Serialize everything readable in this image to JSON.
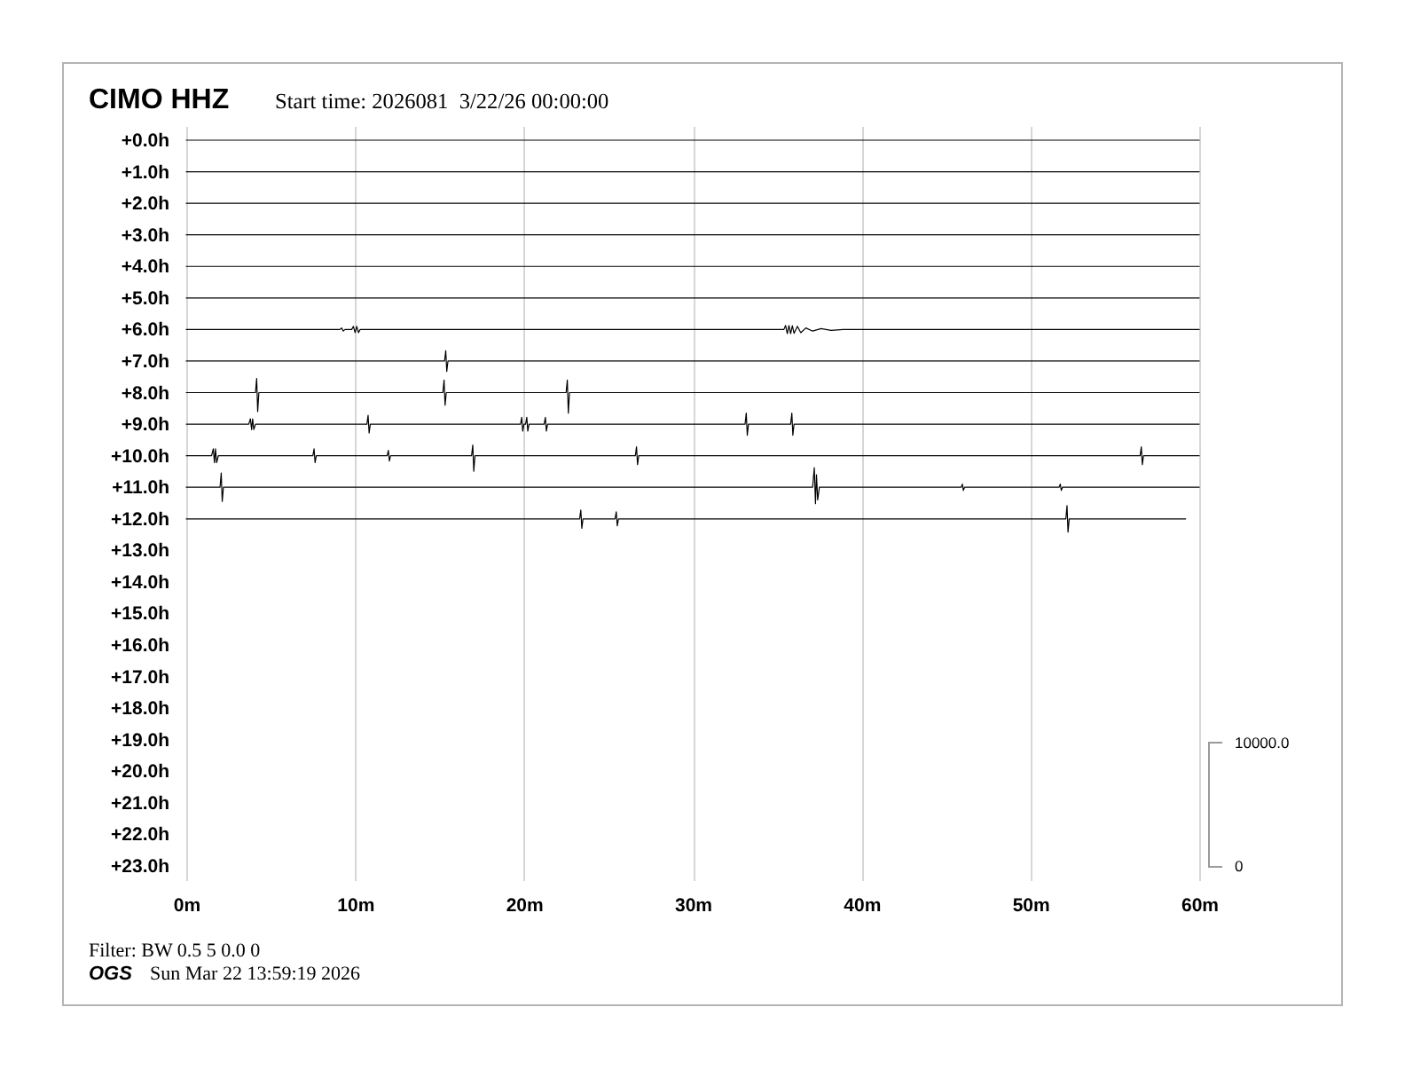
{
  "chart_data": {
    "type": "line",
    "title": "CIMO HHZ",
    "subtitle": "Start time: 2026081  3/22/26 00:00:00",
    "annotations": [
      "Filter: BW 0.5 5 0.0 0",
      "OGS",
      "Sun Mar 22 13:59:19 2026",
      "10000.0",
      "0"
    ],
    "xlim": [
      0,
      60
    ],
    "xticks": [
      {
        "value": 0,
        "label": "0m"
      },
      {
        "value": 10,
        "label": "10m"
      },
      {
        "value": 20,
        "label": "20m"
      },
      {
        "value": 30,
        "label": "30m"
      },
      {
        "value": 40,
        "label": "40m"
      },
      {
        "value": 50,
        "label": "50m"
      },
      {
        "value": 60,
        "label": "60m"
      }
    ],
    "ylim": [
      23.45,
      -0.45
    ],
    "yticks": [
      {
        "value": 0,
        "label": "+0.0h"
      },
      {
        "value": 1,
        "label": "+1.0h"
      },
      {
        "value": 2,
        "label": "+2.0h"
      },
      {
        "value": 3,
        "label": "+3.0h"
      },
      {
        "value": 4,
        "label": "+4.0h"
      },
      {
        "value": 5,
        "label": "+5.0h"
      },
      {
        "value": 6,
        "label": "+6.0h"
      },
      {
        "value": 7,
        "label": "+7.0h"
      },
      {
        "value": 8,
        "label": "+8.0h"
      },
      {
        "value": 9,
        "label": "+9.0h"
      },
      {
        "value": 10,
        "label": "+10.0h"
      },
      {
        "value": 11,
        "label": "+11.0h"
      },
      {
        "value": 12,
        "label": "+12.0h"
      },
      {
        "value": 13,
        "label": "+13.0h"
      },
      {
        "value": 14,
        "label": "+14.0h"
      },
      {
        "value": 15,
        "label": "+15.0h"
      },
      {
        "value": 16,
        "label": "+16.0h"
      },
      {
        "value": 17,
        "label": "+17.0h"
      },
      {
        "value": 18,
        "label": "+18.0h"
      },
      {
        "value": 19,
        "label": "+19.0h"
      },
      {
        "value": 20,
        "label": "+20.0h"
      },
      {
        "value": 21,
        "label": "+21.0h"
      },
      {
        "value": 22,
        "label": "+22.0h"
      },
      {
        "value": 23,
        "label": "+23.0h"
      }
    ],
    "grid": "x",
    "series": [
      {
        "color": "#000000",
        "x": [
          0,
          60
        ],
        "values": [
          0,
          0
        ]
      },
      {
        "color": "#000000",
        "x": [
          0,
          60
        ],
        "values": [
          1,
          1
        ]
      },
      {
        "color": "#000000",
        "x": [
          0,
          60
        ],
        "values": [
          2,
          2
        ]
      },
      {
        "color": "#000000",
        "x": [
          0,
          60
        ],
        "values": [
          3,
          3
        ]
      },
      {
        "color": "#000000",
        "x": [
          0,
          60
        ],
        "values": [
          4,
          4
        ]
      },
      {
        "color": "#000000",
        "x": [
          0,
          60
        ],
        "values": [
          5,
          5
        ]
      },
      {
        "color": "#000000",
        "x": [
          0,
          9.1,
          9.2,
          9.3,
          9.4,
          9.8,
          9.9,
          10.0,
          10.1,
          10.2,
          10.3,
          35.4,
          35.5,
          35.6,
          35.7,
          35.8,
          35.9,
          36.0,
          36.2,
          36.4,
          36.7,
          37.1,
          37.6,
          38.2,
          38.9,
          60
        ],
        "values": [
          6,
          6,
          5.95,
          6.05,
          6,
          6,
          5.9,
          6.1,
          5.9,
          6.1,
          6,
          6,
          5.87,
          6.13,
          5.87,
          6.13,
          5.88,
          6.12,
          5.9,
          6.1,
          5.95,
          6.05,
          5.97,
          6.03,
          6,
          6
        ]
      },
      {
        "color": "#000000",
        "x": [
          0,
          15.3,
          15.37,
          15.43,
          15.5,
          60
        ],
        "values": [
          7,
          7,
          6.67,
          7.33,
          7,
          7
        ]
      },
      {
        "color": "#000000",
        "x": [
          0,
          4.1,
          4.17,
          4.23,
          4.3,
          15.2,
          15.27,
          15.33,
          15.4,
          22.5,
          22.57,
          22.63,
          22.7,
          60
        ],
        "values": [
          8,
          8,
          7.55,
          8.6,
          8,
          8,
          7.6,
          8.4,
          8,
          8,
          7.6,
          8.65,
          8,
          8
        ]
      },
      {
        "color": "#000000",
        "x": [
          0,
          3.7,
          3.8,
          3.87,
          3.93,
          4.0,
          4.1,
          10.7,
          10.77,
          10.83,
          10.9,
          19.8,
          19.87,
          19.93,
          20.0,
          20.1,
          20.17,
          20.23,
          20.3,
          21.2,
          21.27,
          21.33,
          21.4,
          33.1,
          33.17,
          33.23,
          33.3,
          35.8,
          35.87,
          35.93,
          36.0,
          60
        ],
        "values": [
          9,
          9,
          8.83,
          9.17,
          8.83,
          9.17,
          9,
          9,
          8.72,
          9.28,
          9,
          9,
          8.78,
          9.22,
          9,
          9,
          8.78,
          9.22,
          9,
          9,
          8.78,
          9.22,
          9,
          9,
          8.65,
          9.35,
          9,
          9,
          8.65,
          9.35,
          9,
          9
        ]
      },
      {
        "color": "#000000",
        "x": [
          0,
          1.5,
          1.6,
          1.67,
          1.73,
          1.8,
          1.9,
          7.5,
          7.57,
          7.63,
          7.7,
          11.9,
          11.97,
          12.03,
          12.1,
          16.9,
          16.97,
          17.03,
          17.1,
          26.6,
          26.67,
          26.73,
          26.8,
          56.5,
          56.57,
          56.63,
          56.7,
          60
        ],
        "values": [
          10,
          10,
          9.78,
          10.22,
          9.78,
          10.22,
          10,
          10,
          9.78,
          10.22,
          10,
          10,
          9.83,
          10.17,
          10,
          10,
          9.66,
          10.49,
          10,
          10,
          9.72,
          10.28,
          10,
          10,
          9.72,
          10.28,
          10,
          10
        ]
      },
      {
        "color": "#000000",
        "x": [
          0,
          2.0,
          2.07,
          2.13,
          2.2,
          37.1,
          37.2,
          37.27,
          37.33,
          37.4,
          37.5,
          45.9,
          45.97,
          46.03,
          46.1,
          51.7,
          51.77,
          51.83,
          51.9,
          60
        ],
        "values": [
          11,
          11,
          10.55,
          11.45,
          11,
          11,
          10.38,
          11.52,
          10.6,
          11.4,
          11,
          11,
          10.9,
          11.1,
          11,
          11,
          10.9,
          11.1,
          11,
          11
        ]
      },
      {
        "color": "#000000",
        "x": [
          0,
          23.3,
          23.37,
          23.43,
          23.5,
          25.4,
          25.47,
          25.53,
          25.6,
          52.1,
          52.17,
          52.23,
          52.3,
          59.2
        ],
        "values": [
          12,
          12,
          11.72,
          12.3,
          12,
          12,
          11.78,
          12.22,
          12,
          12,
          11.58,
          12.42,
          12,
          12
        ]
      }
    ]
  }
}
